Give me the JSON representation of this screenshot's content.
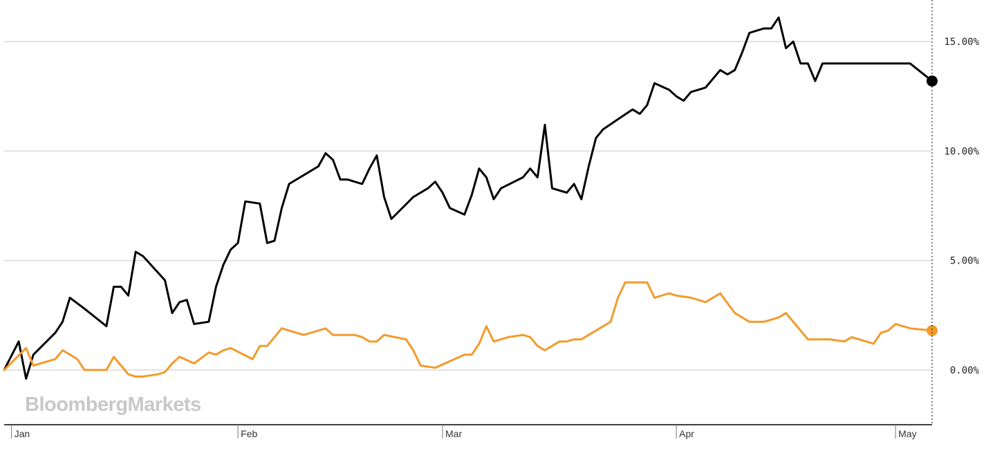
{
  "chart_data": {
    "type": "line",
    "watermark": "BloombergMarkets",
    "x_ticks": [
      "Jan",
      "Feb",
      "Mar",
      "Apr",
      "May"
    ],
    "x_tick_positions": [
      2,
      33,
      61,
      93,
      123
    ],
    "y_ticks": [
      "0.00%",
      "5.00%",
      "10.00%",
      "15.00%"
    ],
    "y_tick_values": [
      0,
      5,
      10,
      15
    ],
    "xlim": [
      1,
      128
    ],
    "ylim": [
      -2.5,
      16.9
    ],
    "grid": true,
    "legend": "none",
    "series": [
      {
        "color": "#000000",
        "x": [
          1,
          3,
          4,
          5,
          8,
          9,
          10,
          12,
          15,
          16,
          17,
          18,
          19,
          20,
          23,
          24,
          25,
          26,
          27,
          29,
          30,
          31,
          32,
          33,
          34,
          36,
          37,
          38,
          39,
          40,
          43,
          44,
          45,
          46,
          47,
          48,
          50,
          51,
          52,
          53,
          54,
          57,
          58,
          59,
          60,
          61,
          62,
          64,
          65,
          66,
          67,
          68,
          69,
          72,
          73,
          74,
          75,
          76,
          78,
          79,
          80,
          81,
          82,
          83,
          87,
          88,
          89,
          90,
          92,
          93,
          94,
          95,
          96,
          97,
          99,
          100,
          101,
          102,
          103,
          105,
          106,
          107,
          108,
          109,
          110,
          111,
          112,
          113,
          114,
          116,
          117,
          118,
          119,
          120,
          121,
          122,
          123,
          124,
          125,
          128
        ],
        "y": [
          0.0,
          1.3,
          -0.4,
          0.7,
          1.7,
          2.2,
          3.3,
          2.8,
          2.0,
          3.8,
          3.8,
          3.4,
          5.4,
          5.2,
          4.1,
          2.6,
          3.1,
          3.2,
          2.1,
          2.2,
          3.8,
          4.8,
          5.5,
          5.8,
          7.7,
          7.6,
          5.8,
          5.9,
          7.4,
          8.5,
          9.1,
          9.3,
          9.9,
          9.6,
          8.7,
          8.7,
          8.5,
          9.2,
          9.8,
          7.9,
          6.9,
          7.9,
          8.1,
          8.3,
          8.6,
          8.1,
          7.4,
          7.1,
          8.0,
          9.2,
          8.8,
          7.8,
          8.3,
          8.8,
          9.2,
          8.8,
          11.2,
          8.3,
          8.1,
          8.5,
          7.8,
          9.3,
          10.6,
          11.0,
          11.9,
          11.7,
          12.1,
          13.1,
          12.8,
          12.5,
          12.3,
          12.7,
          12.8,
          12.9,
          13.7,
          13.5,
          13.7,
          14.5,
          15.4,
          15.6,
          15.6,
          16.1,
          14.7,
          15.0,
          14.0,
          14.0,
          13.2,
          14.0,
          14.0,
          14.0,
          14.0,
          14.0,
          14.0,
          14.0,
          14.0,
          14.0,
          14.0,
          14.0,
          14.0,
          13.2
        ]
      },
      {
        "color": "#f39a2c",
        "x": [
          1,
          4,
          5,
          8,
          9,
          10,
          11,
          12,
          15,
          16,
          17,
          18,
          19,
          20,
          22,
          23,
          24,
          25,
          27,
          29,
          30,
          31,
          32,
          35,
          36,
          37,
          38,
          39,
          40,
          42,
          44,
          45,
          46,
          47,
          49,
          50,
          51,
          52,
          53,
          56,
          57,
          58,
          60,
          64,
          65,
          66,
          67,
          68,
          70,
          72,
          73,
          74,
          75,
          77,
          78,
          79,
          80,
          81,
          84,
          85,
          86,
          87,
          88,
          89,
          90,
          92,
          93,
          95,
          96,
          97,
          99,
          101,
          102,
          103,
          104,
          105,
          107,
          108,
          110,
          111,
          112,
          113,
          114,
          116,
          117,
          118,
          120,
          121,
          122,
          123,
          124,
          125,
          128
        ],
        "y": [
          0.0,
          1.0,
          0.2,
          0.5,
          0.9,
          0.7,
          0.5,
          0.0,
          0.0,
          0.6,
          0.2,
          -0.2,
          -0.3,
          -0.3,
          -0.2,
          -0.1,
          0.3,
          0.6,
          0.3,
          0.8,
          0.7,
          0.9,
          1.0,
          0.5,
          1.1,
          1.1,
          1.5,
          1.9,
          1.8,
          1.6,
          1.8,
          1.9,
          1.6,
          1.6,
          1.6,
          1.5,
          1.3,
          1.3,
          1.6,
          1.4,
          0.9,
          0.2,
          0.1,
          0.7,
          0.7,
          1.2,
          2.0,
          1.3,
          1.5,
          1.6,
          1.5,
          1.1,
          0.9,
          1.3,
          1.3,
          1.4,
          1.4,
          1.6,
          2.2,
          3.3,
          4.0,
          4.0,
          4.0,
          4.0,
          3.3,
          3.5,
          3.4,
          3.3,
          3.2,
          3.1,
          3.5,
          2.6,
          2.4,
          2.2,
          2.2,
          2.2,
          2.4,
          2.6,
          1.8,
          1.4,
          1.4,
          1.4,
          1.4,
          1.3,
          1.5,
          1.4,
          1.2,
          1.7,
          1.8,
          2.1,
          2.0,
          1.9,
          1.8
        ]
      }
    ]
  }
}
